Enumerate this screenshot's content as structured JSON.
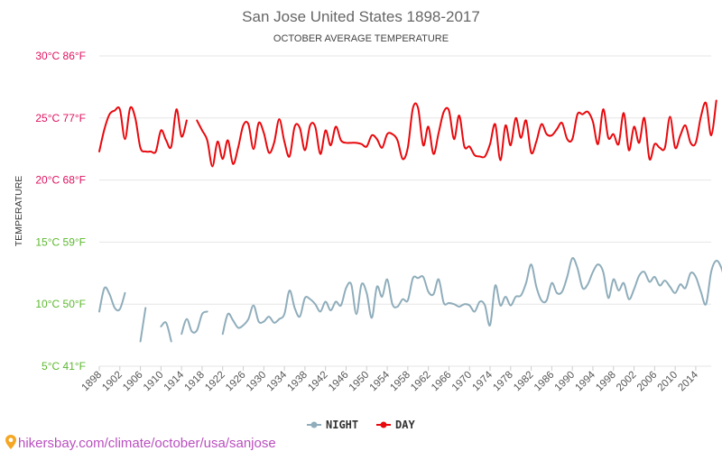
{
  "chart_data": {
    "type": "line",
    "title": "San Jose United States 1898-2017",
    "subtitle": "OCTOBER AVERAGE TEMPERATURE",
    "ylabel": "TEMPERATURE",
    "ylim": [
      5,
      30
    ],
    "grid": true,
    "legend_position": "bottom-center",
    "y_ticks": [
      {
        "value": 30,
        "label": "30°C 86°F",
        "color": "#e0115f"
      },
      {
        "value": 25,
        "label": "25°C 77°F",
        "color": "#e0115f"
      },
      {
        "value": 20,
        "label": "20°C 68°F",
        "color": "#e0115f"
      },
      {
        "value": 15,
        "label": "15°C 59°F",
        "color": "#5cb82e"
      },
      {
        "value": 10,
        "label": "10°C 50°F",
        "color": "#5cb82e"
      },
      {
        "value": 5,
        "label": "5°C 41°F",
        "color": "#5cb82e"
      }
    ],
    "x_start": 1898,
    "x_end": 2017,
    "x_tick_labels": [
      "1898",
      "1902",
      "1906",
      "1910",
      "1914",
      "1918",
      "1922",
      "1926",
      "1930",
      "1934",
      "1938",
      "1942",
      "1946",
      "1950",
      "1954",
      "1958",
      "1962",
      "1966",
      "1970",
      "1974",
      "1978",
      "1982",
      "1986",
      "1990",
      "1994",
      "1998",
      "2002",
      "2006",
      "2010",
      "2014"
    ],
    "series": [
      {
        "name": "NIGHT",
        "color": "#8fadbb",
        "values": [
          9.4,
          11.3,
          10.8,
          9.7,
          9.6,
          10.9,
          null,
          null,
          7.0,
          9.7,
          null,
          null,
          8.2,
          8.5,
          7.0,
          null,
          7.6,
          8.8,
          7.8,
          7.9,
          9.2,
          9.4,
          null,
          null,
          7.6,
          9.2,
          8.7,
          8.1,
          8.3,
          8.8,
          9.9,
          8.6,
          8.6,
          9.0,
          8.5,
          8.8,
          9.2,
          11.1,
          9.7,
          9.0,
          10.5,
          10.4,
          10.0,
          9.4,
          10.2,
          9.5,
          10.2,
          9.9,
          11.3,
          11.6,
          9.2,
          11.6,
          10.9,
          8.9,
          11.4,
          10.6,
          12.0,
          10.0,
          9.8,
          10.4,
          10.3,
          12.1,
          12.1,
          12.2,
          11.0,
          10.8,
          12.0,
          10.1,
          10.1,
          10.0,
          9.8,
          10.0,
          9.9,
          9.4,
          10.2,
          9.9,
          8.3,
          11.5,
          9.9,
          10.6,
          9.9,
          10.6,
          10.7,
          11.7,
          13.2,
          11.4,
          10.3,
          10.3,
          11.7,
          10.9,
          11.0,
          12.2,
          13.7,
          12.9,
          11.3,
          11.6,
          12.6,
          13.2,
          12.6,
          10.5,
          12.0,
          11.1,
          11.7,
          10.4,
          11.2,
          12.3,
          12.6,
          11.8,
          12.2,
          11.5,
          11.9,
          11.4,
          10.9,
          11.6,
          11.3,
          12.5,
          12.2,
          11.0,
          10.0,
          12.6,
          13.5,
          12.9,
          11.4
        ]
      },
      {
        "name": "DAY",
        "color": "#e8090d",
        "values": [
          22.3,
          24.1,
          25.3,
          25.6,
          25.7,
          23.3,
          25.8,
          25.0,
          22.6,
          22.3,
          22.3,
          22.3,
          24.0,
          23.2,
          22.7,
          25.7,
          23.5,
          24.8,
          null,
          24.8,
          24.0,
          23.2,
          21.1,
          23.1,
          21.7,
          23.2,
          21.3,
          22.6,
          24.4,
          24.5,
          22.5,
          24.6,
          23.8,
          22.2,
          23.0,
          24.9,
          23.1,
          21.9,
          24.3,
          24.2,
          22.4,
          24.4,
          24.3,
          22.1,
          24.0,
          22.8,
          24.3,
          23.2,
          23.0,
          23.0,
          23.0,
          22.9,
          22.7,
          23.6,
          23.3,
          22.6,
          23.7,
          23.7,
          23.2,
          21.7,
          22.6,
          25.8,
          25.8,
          22.8,
          24.3,
          22.1,
          23.8,
          25.5,
          25.6,
          23.3,
          25.2,
          22.7,
          22.7,
          22.0,
          21.9,
          21.9,
          22.9,
          24.5,
          21.6,
          24.4,
          22.8,
          25.0,
          23.4,
          24.8,
          22.2,
          23.1,
          24.5,
          23.7,
          23.6,
          24.1,
          24.6,
          23.3,
          23.3,
          25.3,
          25.3,
          25.5,
          24.7,
          22.9,
          25.7,
          23.4,
          23.7,
          22.9,
          25.4,
          22.4,
          24.3,
          23.0,
          25.0,
          21.7,
          22.9,
          22.6,
          22.6,
          25.1,
          22.6,
          23.6,
          24.4,
          23.0,
          23.0,
          25.1,
          26.2,
          23.6,
          26.4
        ]
      }
    ]
  },
  "legend": [
    {
      "label": "NIGHT",
      "color": "#8fadbb"
    },
    {
      "label": "DAY",
      "color": "#e8090d"
    }
  ],
  "footer": {
    "source_url": "hikersbay.com/climate/october/usa/sanjose",
    "pin_icon": "location-pin-icon"
  }
}
